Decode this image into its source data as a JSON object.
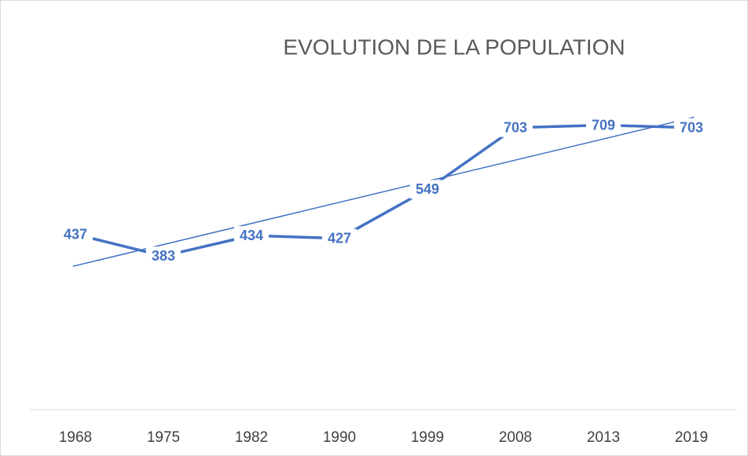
{
  "chart_data": {
    "type": "line",
    "title": "EVOLUTION DE LA POPULATION",
    "categories": [
      "1968",
      "1975",
      "1982",
      "1990",
      "1999",
      "2008",
      "2013",
      "2019"
    ],
    "values": [
      437,
      383,
      434,
      427,
      549,
      703,
      709,
      703
    ],
    "color": "#4472c4",
    "ylim": [
      0,
      800
    ],
    "grid": false,
    "trendline": true,
    "data_labels": true
  }
}
